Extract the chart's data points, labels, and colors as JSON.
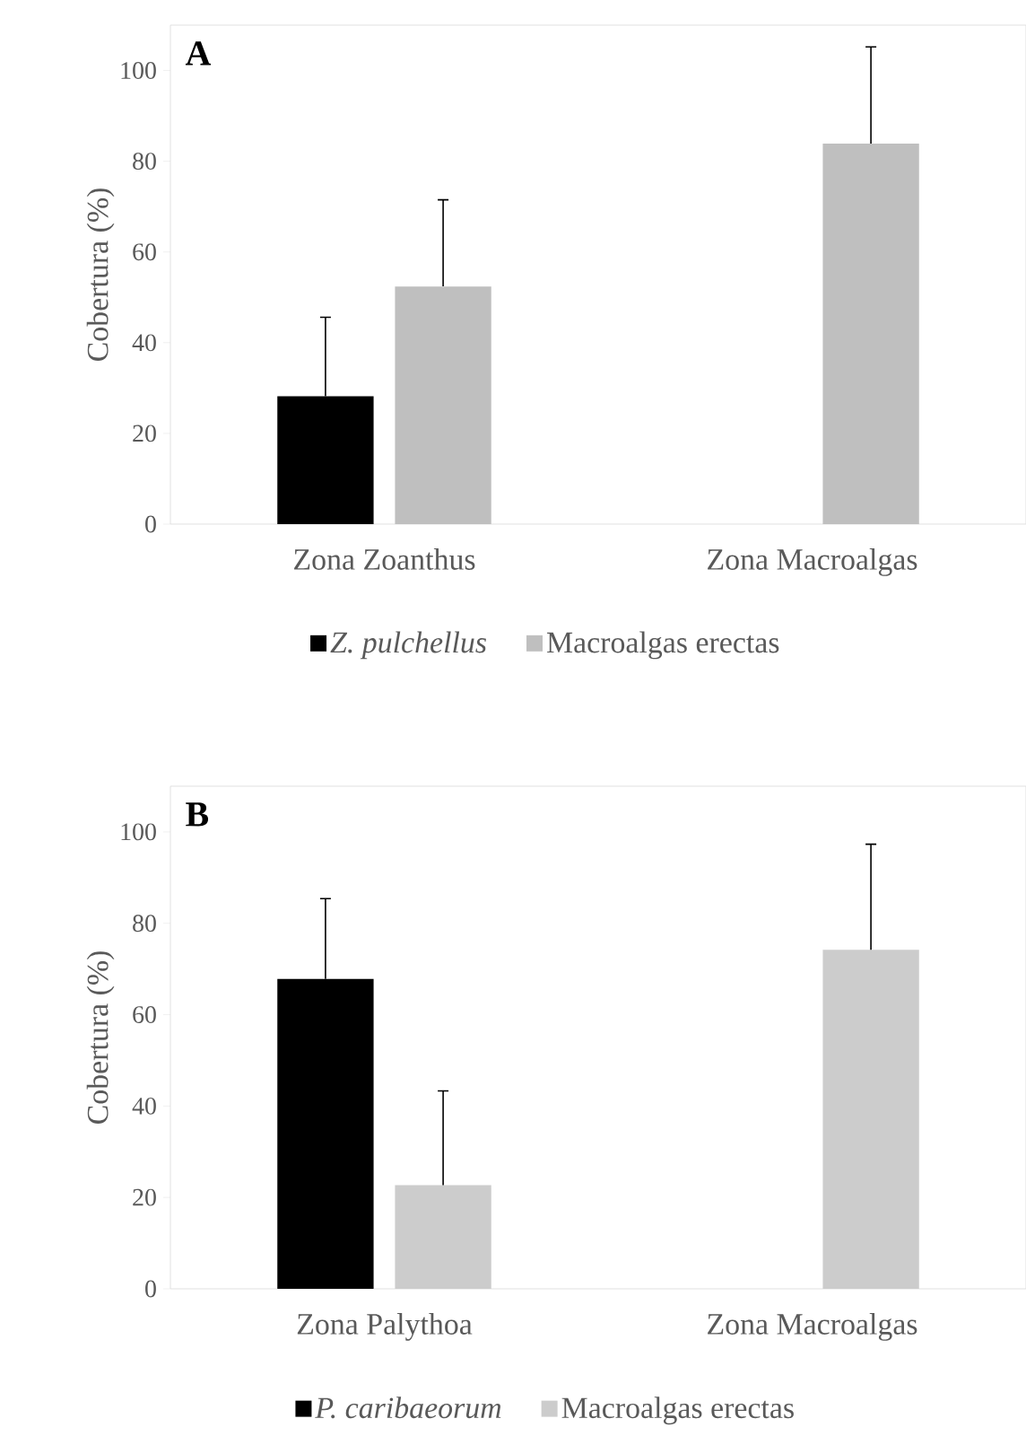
{
  "chart_data": [
    {
      "type": "bar",
      "categories": [
        "Zona Zoanthus",
        "Zona Macroalgas"
      ],
      "ylabel": "Cobertura (%)",
      "ylim": [
        0,
        110
      ],
      "yticks": [
        0,
        20,
        40,
        60,
        80,
        100
      ],
      "legend": "bottom",
      "annotations": [
        "A"
      ],
      "series": [
        {
          "name": "*Z. pulchellus*",
          "color": "#000000",
          "values": [
            28.2,
            null
          ],
          "errors": [
            [
              28.2,
              45.6
            ],
            null
          ]
        },
        {
          "name": "Macroalgas erectas",
          "color": "#bfbfbf",
          "values": [
            52.4,
            83.9
          ],
          "errors": [
            [
              52.4,
              71.5
            ],
            [
              83.9,
              105.2
            ]
          ]
        }
      ]
    },
    {
      "type": "bar",
      "categories": [
        "Zona Palythoa",
        "Zona Macroalgas"
      ],
      "ylabel": "Cobertura (%)",
      "ylim": [
        0,
        110
      ],
      "yticks": [
        0,
        20,
        40,
        60,
        80,
        100
      ],
      "legend": "bottom",
      "annotations": [
        "B"
      ],
      "series": [
        {
          "name": "*P. caribaeorum*",
          "color": "#000000",
          "values": [
            67.8,
            null
          ],
          "errors": [
            [
              67.8,
              85.4
            ],
            null
          ]
        },
        {
          "name": "Macroalgas erectas",
          "color": "#cccccc",
          "values": [
            22.7,
            74.2
          ],
          "errors": [
            [
              22.7,
              43.3
            ],
            [
              74.2,
              97.3
            ]
          ]
        }
      ]
    }
  ]
}
